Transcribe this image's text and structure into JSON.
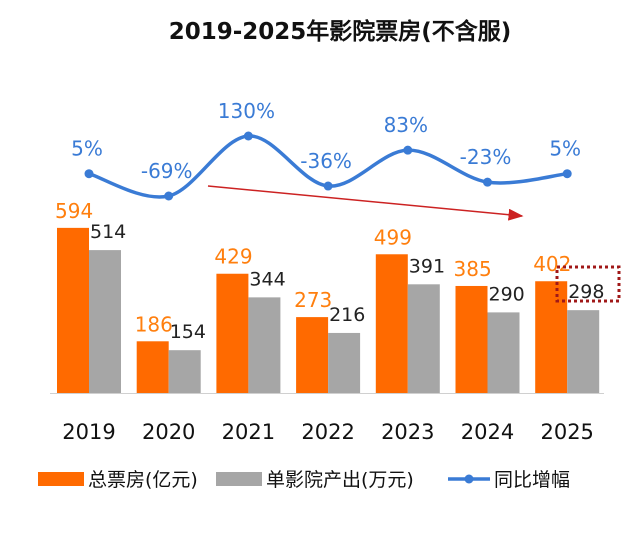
{
  "chart_data": {
    "type": "bar",
    "title": "2019-2025年影院票房(不含服)",
    "categories": [
      "2019",
      "2020",
      "2021",
      "2022",
      "2023",
      "2024",
      "2025"
    ],
    "series": [
      {
        "name": "总票房(亿元)",
        "type": "bar",
        "color": "#ff6a00",
        "values": [
          594,
          186,
          429,
          273,
          499,
          385,
          402
        ]
      },
      {
        "name": "单影院产出(万元)",
        "type": "bar",
        "color": "#a6a6a6",
        "values": [
          514,
          154,
          344,
          216,
          391,
          290,
          298
        ]
      },
      {
        "name": "同比增幅",
        "type": "line",
        "color": "#3a7bd5",
        "values": [
          5,
          -69,
          130,
          -36,
          83,
          -23,
          5
        ],
        "labels": [
          "5%",
          "-69%",
          "130%",
          "-36%",
          "83%",
          "-23%",
          "5%"
        ]
      }
    ],
    "legend": {
      "position": "bottom",
      "entries": [
        "总票房(亿元)",
        "单影院产出(万元)",
        "同比增幅"
      ]
    },
    "ylim": [
      0,
      600
    ],
    "grid": false,
    "annotations": [
      {
        "type": "arrow",
        "description": "red downward trend arrow from 2020 to 2024",
        "color": "#cc2222"
      },
      {
        "type": "dotted-box",
        "description": "dark red dotted highlight around 2025 per-cinema value",
        "color": "#a01818"
      }
    ]
  }
}
